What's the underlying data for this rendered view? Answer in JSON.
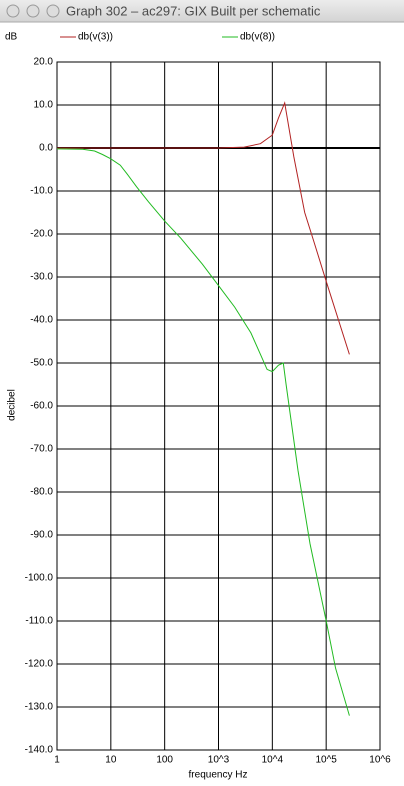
{
  "window_title": "Graph 302 – ac297: GIX Built per schematic",
  "chart_data": {
    "type": "line",
    "y_unit": "dB",
    "ylabel": "decibel",
    "xlabel": "frequency  Hz",
    "xscale": "log",
    "xlim": [
      1,
      1000000
    ],
    "ylim": [
      -140,
      20
    ],
    "grid": true,
    "xticks": [
      1,
      10,
      100,
      {
        "value": 1000,
        "label": "10^3"
      },
      {
        "value": 10000,
        "label": "10^4"
      },
      {
        "value": 100000,
        "label": "10^5"
      },
      {
        "value": 1000000,
        "label": "10^6"
      }
    ],
    "yticks": [
      {
        "value": 20,
        "label": "20.0"
      },
      {
        "value": 10,
        "label": "10.0"
      },
      {
        "value": 0,
        "label": "0.0"
      },
      {
        "value": -10,
        "label": "-10.0"
      },
      {
        "value": -20,
        "label": "-20.0"
      },
      {
        "value": -30,
        "label": "-30.0"
      },
      {
        "value": -40,
        "label": "-40.0"
      },
      {
        "value": -50,
        "label": "-50.0"
      },
      {
        "value": -60,
        "label": "-60.0"
      },
      {
        "value": -70,
        "label": "-70.0"
      },
      {
        "value": -80,
        "label": "-80.0"
      },
      {
        "value": -90,
        "label": "-90.0"
      },
      {
        "value": -100,
        "label": "-100.0"
      },
      {
        "value": -110,
        "label": "-110.0"
      },
      {
        "value": -120,
        "label": "-120.0"
      },
      {
        "value": -130,
        "label": "-130.0"
      },
      {
        "value": -140,
        "label": "-140.0"
      }
    ],
    "series": [
      {
        "name": "db(v(3))",
        "color": "#b22222",
        "x": [
          1,
          1000,
          3000,
          6000,
          10000,
          13000,
          17000,
          25000,
          40000,
          60000,
          100000,
          270000
        ],
        "values": [
          0,
          0,
          0.2,
          1,
          3,
          7,
          10.5,
          -2,
          -15,
          -22,
          -31,
          -48
        ]
      },
      {
        "name": "db(v(8))",
        "color": "#22bb22",
        "x": [
          1,
          3,
          5,
          7,
          10,
          15,
          20,
          30,
          50,
          100,
          200,
          500,
          1000,
          2000,
          4000,
          8000,
          10000,
          13000,
          16000,
          18000,
          30000,
          50000,
          100000,
          150000,
          270000
        ],
        "values": [
          -0.2,
          -0.3,
          -0.7,
          -1.5,
          -2.5,
          -4,
          -6,
          -9,
          -12.5,
          -17,
          -21,
          -27,
          -32,
          -37,
          -43,
          -51.5,
          -52,
          -50.5,
          -50,
          -55,
          -75,
          -92,
          -110,
          -121,
          -132
        ]
      }
    ]
  }
}
